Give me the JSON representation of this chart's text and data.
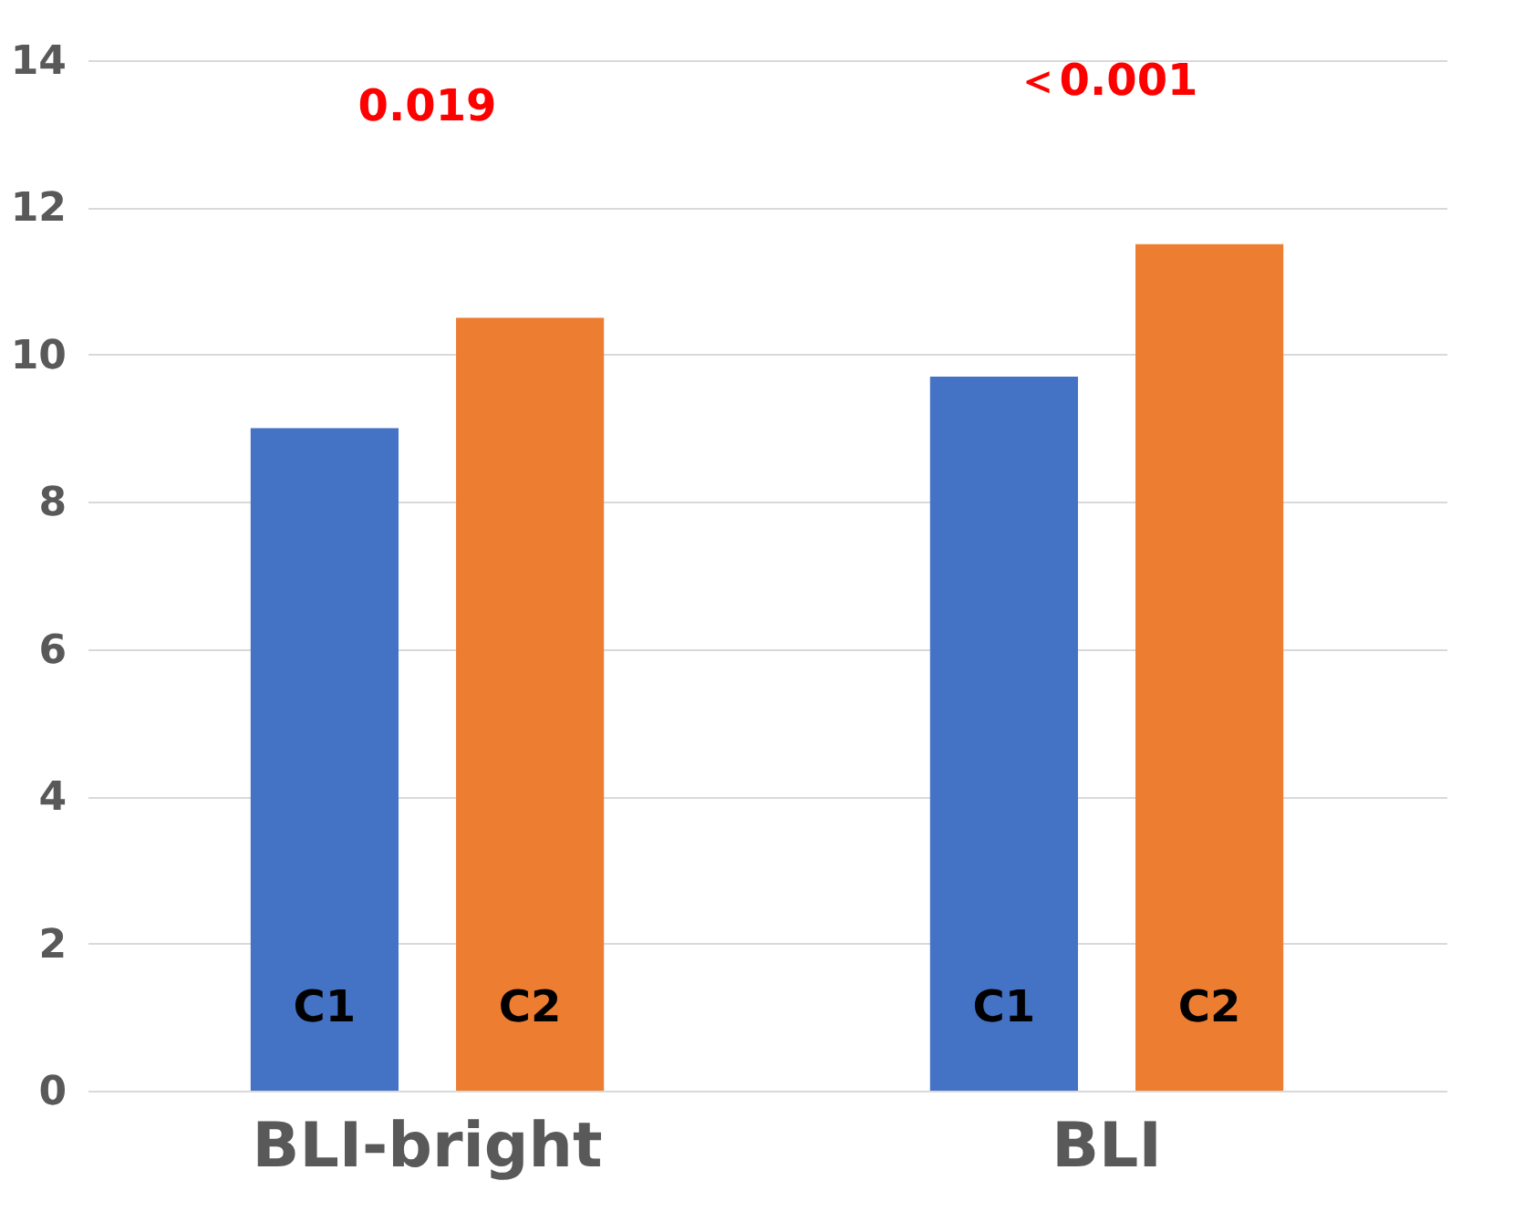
{
  "chart_data": {
    "type": "bar",
    "categories": [
      "BLI-bright",
      "BLI"
    ],
    "series": [
      {
        "name": "C1",
        "color": "#4472c4",
        "values": [
          9.0,
          9.7
        ]
      },
      {
        "name": "C2",
        "color": "#ed7d31",
        "values": [
          10.5,
          11.5
        ]
      }
    ],
    "ylim": [
      0,
      14
    ],
    "yticks": [
      0,
      2,
      4,
      6,
      8,
      10,
      12,
      14
    ],
    "grid": "y",
    "legend": false,
    "annotations": [
      "0.019",
      "＜0.001"
    ]
  }
}
